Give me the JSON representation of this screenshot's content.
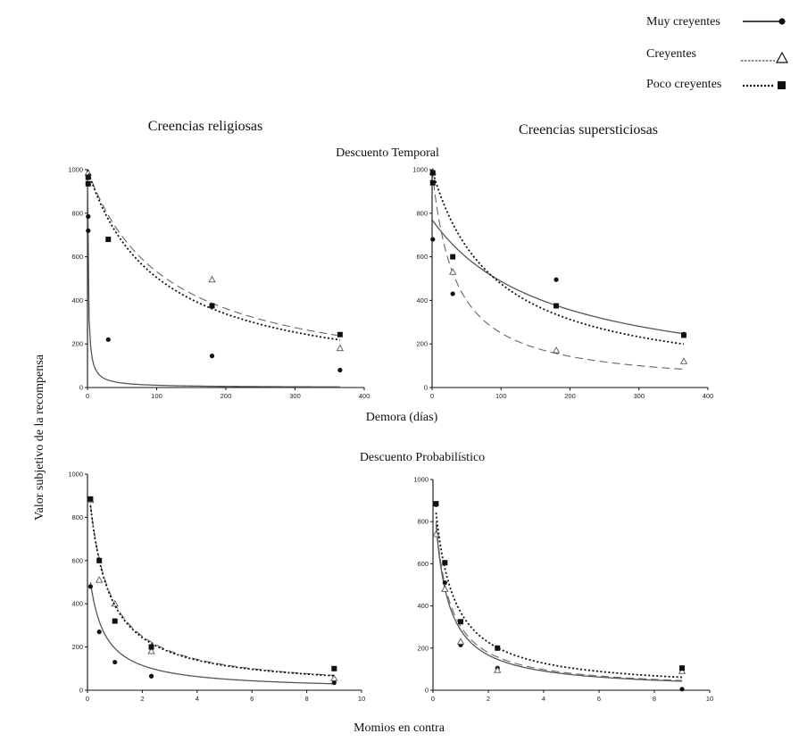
{
  "legend": {
    "items": [
      {
        "label": "Muy creyentes",
        "line": "solid",
        "marker": "filled-circle"
      },
      {
        "label": "Creyentes",
        "line": "short-dash",
        "marker": "open-triangle"
      },
      {
        "label": "Poco creyentes",
        "line": "dotted",
        "marker": "filled-square"
      }
    ]
  },
  "columns": {
    "left": "Creencias religiosas",
    "right": "Creencias supersticiosas"
  },
  "rows": {
    "top": "Descuento Temporal",
    "bottom": "Descuento Probabilístico"
  },
  "shared_ylabel": "Valor subjetivo de la recompensa",
  "xlabels": {
    "top": "Demora (días)",
    "bottom": "Momios en contra"
  },
  "colors": {
    "curves": "#333333",
    "markers": "#111111"
  },
  "chart_data": [
    {
      "type": "scatter",
      "panel": "Creencias religiosas / Descuento Temporal",
      "xlim": [
        0,
        400
      ],
      "ylim": [
        0,
        1000
      ],
      "xticks": [
        0,
        100,
        200,
        300,
        400
      ],
      "yticks": [
        0,
        200,
        400,
        600,
        800,
        1000
      ],
      "series": [
        {
          "name": "Muy creyentes",
          "points": [
            [
              1,
              785
            ],
            [
              1,
              720
            ],
            [
              30,
              220
            ],
            [
              180,
              145
            ],
            [
              365,
              80
            ]
          ],
          "fit": {
            "model": "hyperbolic",
            "A": 1000,
            "k": 0.95,
            "x_max": 365
          }
        },
        {
          "name": "Creyentes",
          "points": [
            [
              1,
              985
            ],
            [
              180,
              495
            ],
            [
              365,
              180
            ]
          ],
          "fit": {
            "model": "hyperbolic",
            "A": 1000,
            "k": 0.0088,
            "x_max": 365
          }
        },
        {
          "name": "Poco creyentes",
          "points": [
            [
              1,
              965
            ],
            [
              1,
              935
            ],
            [
              30,
              680
            ],
            [
              180,
              375
            ],
            [
              365,
              243
            ]
          ],
          "fit": {
            "model": "hyperbolic",
            "A": 1000,
            "k": 0.0098,
            "x_max": 365
          }
        }
      ]
    },
    {
      "type": "scatter",
      "panel": "Creencias supersticiosas / Descuento Temporal",
      "xlim": [
        0,
        400
      ],
      "ylim": [
        0,
        1000
      ],
      "xticks": [
        0,
        100,
        200,
        300,
        400
      ],
      "yticks": [
        0,
        200,
        400,
        600,
        800,
        1000
      ],
      "series": [
        {
          "name": "Muy creyentes",
          "points": [
            [
              1,
              680
            ],
            [
              30,
              430
            ],
            [
              180,
              495
            ],
            [
              365,
              245
            ]
          ],
          "fit": {
            "model": "hyperbolic",
            "A": 770,
            "k": 0.0058,
            "x_max": 365
          }
        },
        {
          "name": "Creyentes",
          "points": [
            [
              1,
              990
            ],
            [
              30,
              530
            ],
            [
              180,
              170
            ],
            [
              365,
              120
            ]
          ],
          "fit": {
            "model": "hyperbolic",
            "A": 1000,
            "k": 0.03,
            "x_max": 365
          }
        },
        {
          "name": "Poco creyentes",
          "points": [
            [
              1,
              985
            ],
            [
              1,
              940
            ],
            [
              30,
              600
            ],
            [
              180,
              375
            ],
            [
              365,
              240
            ]
          ],
          "fit": {
            "model": "hyperbolic",
            "A": 1000,
            "k": 0.011,
            "x_max": 365
          }
        }
      ]
    },
    {
      "type": "scatter",
      "panel": "Creencias religiosas / Descuento Probabilístico",
      "xlim": [
        0,
        10
      ],
      "ylim": [
        0,
        1000
      ],
      "xticks": [
        0,
        2,
        4,
        6,
        8,
        10
      ],
      "yticks": [
        0,
        200,
        400,
        600,
        800,
        1000
      ],
      "series": [
        {
          "name": "Muy creyentes",
          "points": [
            [
              0.11,
              480
            ],
            [
              0.43,
              270
            ],
            [
              1,
              130
            ],
            [
              2.33,
              65
            ],
            [
              9,
              35
            ]
          ],
          "fit": {
            "model": "hyperbolic",
            "A": 620,
            "k": 2.2,
            "x_min": 0.11,
            "x_max": 9
          }
        },
        {
          "name": "Creyentes",
          "points": [
            [
              0.11,
              880
            ],
            [
              0.43,
              510
            ],
            [
              1,
              400
            ],
            [
              2.33,
              180
            ],
            [
              9,
              55
            ]
          ],
          "fit": {
            "model": "hyperbolic",
            "A": 1000,
            "k": 1.5,
            "x_min": 0.11,
            "x_max": 9
          }
        },
        {
          "name": "Poco creyentes",
          "points": [
            [
              0.11,
              885
            ],
            [
              0.43,
              600
            ],
            [
              1,
              320
            ],
            [
              2.33,
              200
            ],
            [
              9,
              100
            ]
          ],
          "fit": {
            "model": "hyperbolic",
            "A": 1000,
            "k": 1.55,
            "x_min": 0.11,
            "x_max": 9
          }
        }
      ]
    },
    {
      "type": "scatter",
      "panel": "Creencias supersticiosas / Descuento Probabilístico",
      "xlim": [
        0,
        10
      ],
      "ylim": [
        0,
        1000
      ],
      "xticks": [
        0,
        2,
        4,
        6,
        8,
        10
      ],
      "yticks": [
        0,
        200,
        400,
        600,
        800,
        1000
      ],
      "series": [
        {
          "name": "Muy creyentes",
          "points": [
            [
              0.11,
              880
            ],
            [
              0.43,
              510
            ],
            [
              1,
              215
            ],
            [
              2.33,
              105
            ],
            [
              9,
              5
            ]
          ],
          "fit": {
            "model": "hyperbolic",
            "A": 1000,
            "k": 2.5,
            "x_min": 0.11,
            "x_max": 9
          }
        },
        {
          "name": "Creyentes",
          "points": [
            [
              0.11,
              740
            ],
            [
              0.43,
              480
            ],
            [
              1,
              230
            ],
            [
              2.33,
              95
            ],
            [
              9,
              90
            ]
          ],
          "fit": {
            "model": "hyperbolic",
            "A": 1000,
            "k": 2.3,
            "x_min": 0.11,
            "x_max": 9
          }
        },
        {
          "name": "Poco creyentes",
          "points": [
            [
              0.11,
              885
            ],
            [
              0.43,
              605
            ],
            [
              1,
              325
            ],
            [
              2.33,
              200
            ],
            [
              9,
              105
            ]
          ],
          "fit": {
            "model": "hyperbolic",
            "A": 1000,
            "k": 1.7,
            "x_min": 0.11,
            "x_max": 9
          }
        }
      ]
    }
  ]
}
